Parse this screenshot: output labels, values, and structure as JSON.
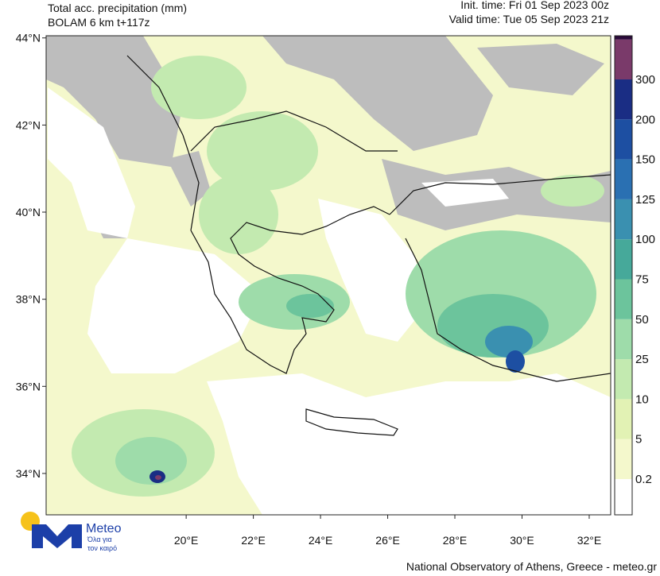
{
  "header": {
    "title": "Total acc. precipitation (mm)",
    "model": "BOLAM 6 km t+117z",
    "init_time": "Init. time: Fri 01 Sep 2023 00z",
    "valid_time": "Valid time: Tue 05 Sep 2023 21z"
  },
  "map": {
    "xlim": [
      15.83,
      32.64
    ],
    "ylim": [
      33.05,
      44.05
    ],
    "xticks": [
      {
        "value": 20,
        "label": "20°E"
      },
      {
        "value": 22,
        "label": "22°E"
      },
      {
        "value": 24,
        "label": "24°E"
      },
      {
        "value": 26,
        "label": "26°E"
      },
      {
        "value": 28,
        "label": "28°E"
      },
      {
        "value": 30,
        "label": "30°E"
      },
      {
        "value": 32,
        "label": "32°E"
      }
    ],
    "yticks": [
      {
        "value": 34,
        "label": "34°N"
      },
      {
        "value": 36,
        "label": "36°N"
      },
      {
        "value": 38,
        "label": "38°N"
      },
      {
        "value": 40,
        "label": "40°N"
      },
      {
        "value": 42,
        "label": "42°N"
      },
      {
        "value": 44,
        "label": "44°N"
      }
    ]
  },
  "colorbar": {
    "levels": [
      0.2,
      5,
      10,
      25,
      50,
      75,
      100,
      125,
      150,
      200,
      300
    ],
    "colors": [
      "#ffffff",
      "#f4f8cc",
      "#e2f2b4",
      "#c3eab0",
      "#9edcaa",
      "#6cc49c",
      "#46a99a",
      "#3a90b0",
      "#2a70b2",
      "#1d4fa2",
      "#1a2d84",
      "#7a3a6a",
      "#2a0a3a"
    ]
  },
  "logo": {
    "name": "Meteo",
    "tagline_1": "Όλα για",
    "tagline_2": "τον καιρό"
  },
  "footer": "National Observatory of Athens, Greece - meteo.gr"
}
